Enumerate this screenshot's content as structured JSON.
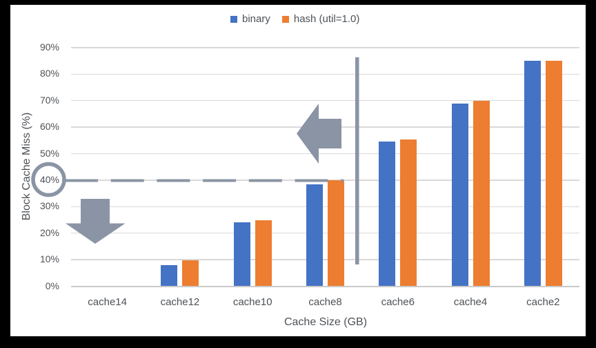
{
  "background": {
    "frame_color": "#000000",
    "canvas_color": "#ffffff"
  },
  "legend": {
    "items": [
      {
        "label": "binary",
        "color": "#4472C4"
      },
      {
        "label": "hash (util=1.0)",
        "color": "#ED7D31"
      }
    ]
  },
  "chart_data": {
    "type": "bar",
    "title": "",
    "xlabel": "Cache Size (GB)",
    "ylabel": "Block Cache Miss (%)",
    "categories": [
      "cache14",
      "cache12",
      "cache10",
      "cache8",
      "cache6",
      "cache4",
      "cache2"
    ],
    "series": [
      {
        "name": "binary",
        "color": "#4472C4",
        "values": [
          0,
          8,
          24,
          38.5,
          54.5,
          69,
          85
        ]
      },
      {
        "name": "hash (util=1.0)",
        "color": "#ED7D31",
        "values": [
          0,
          9.7,
          24.8,
          40,
          55.3,
          70,
          85
        ]
      }
    ],
    "ylim": [
      0,
      90
    ],
    "ytick_step": 10,
    "ytick_labels": [
      "0%",
      "10%",
      "20%",
      "30%",
      "40%",
      "50%",
      "60%",
      "70%",
      "80%",
      "90%"
    ],
    "grid": true,
    "legend_position": "top",
    "gridline_color": "#D9D9D9",
    "axis_text_color": "#4D5156",
    "annotations": {
      "color": "#8A94A4",
      "items": [
        {
          "name": "dashed-40pct-line",
          "type": "dashed-horizontal-line",
          "at": "40%"
        },
        {
          "name": "circle-highlight-40pct",
          "type": "ellipse-outline",
          "target": "40% tick label"
        },
        {
          "name": "down-arrow",
          "type": "block-arrow-down"
        },
        {
          "name": "left-arrow",
          "type": "block-arrow-left"
        },
        {
          "name": "vertical-divider-line",
          "type": "vertical-line",
          "between": [
            "cache8",
            "cache6"
          ]
        }
      ]
    }
  }
}
